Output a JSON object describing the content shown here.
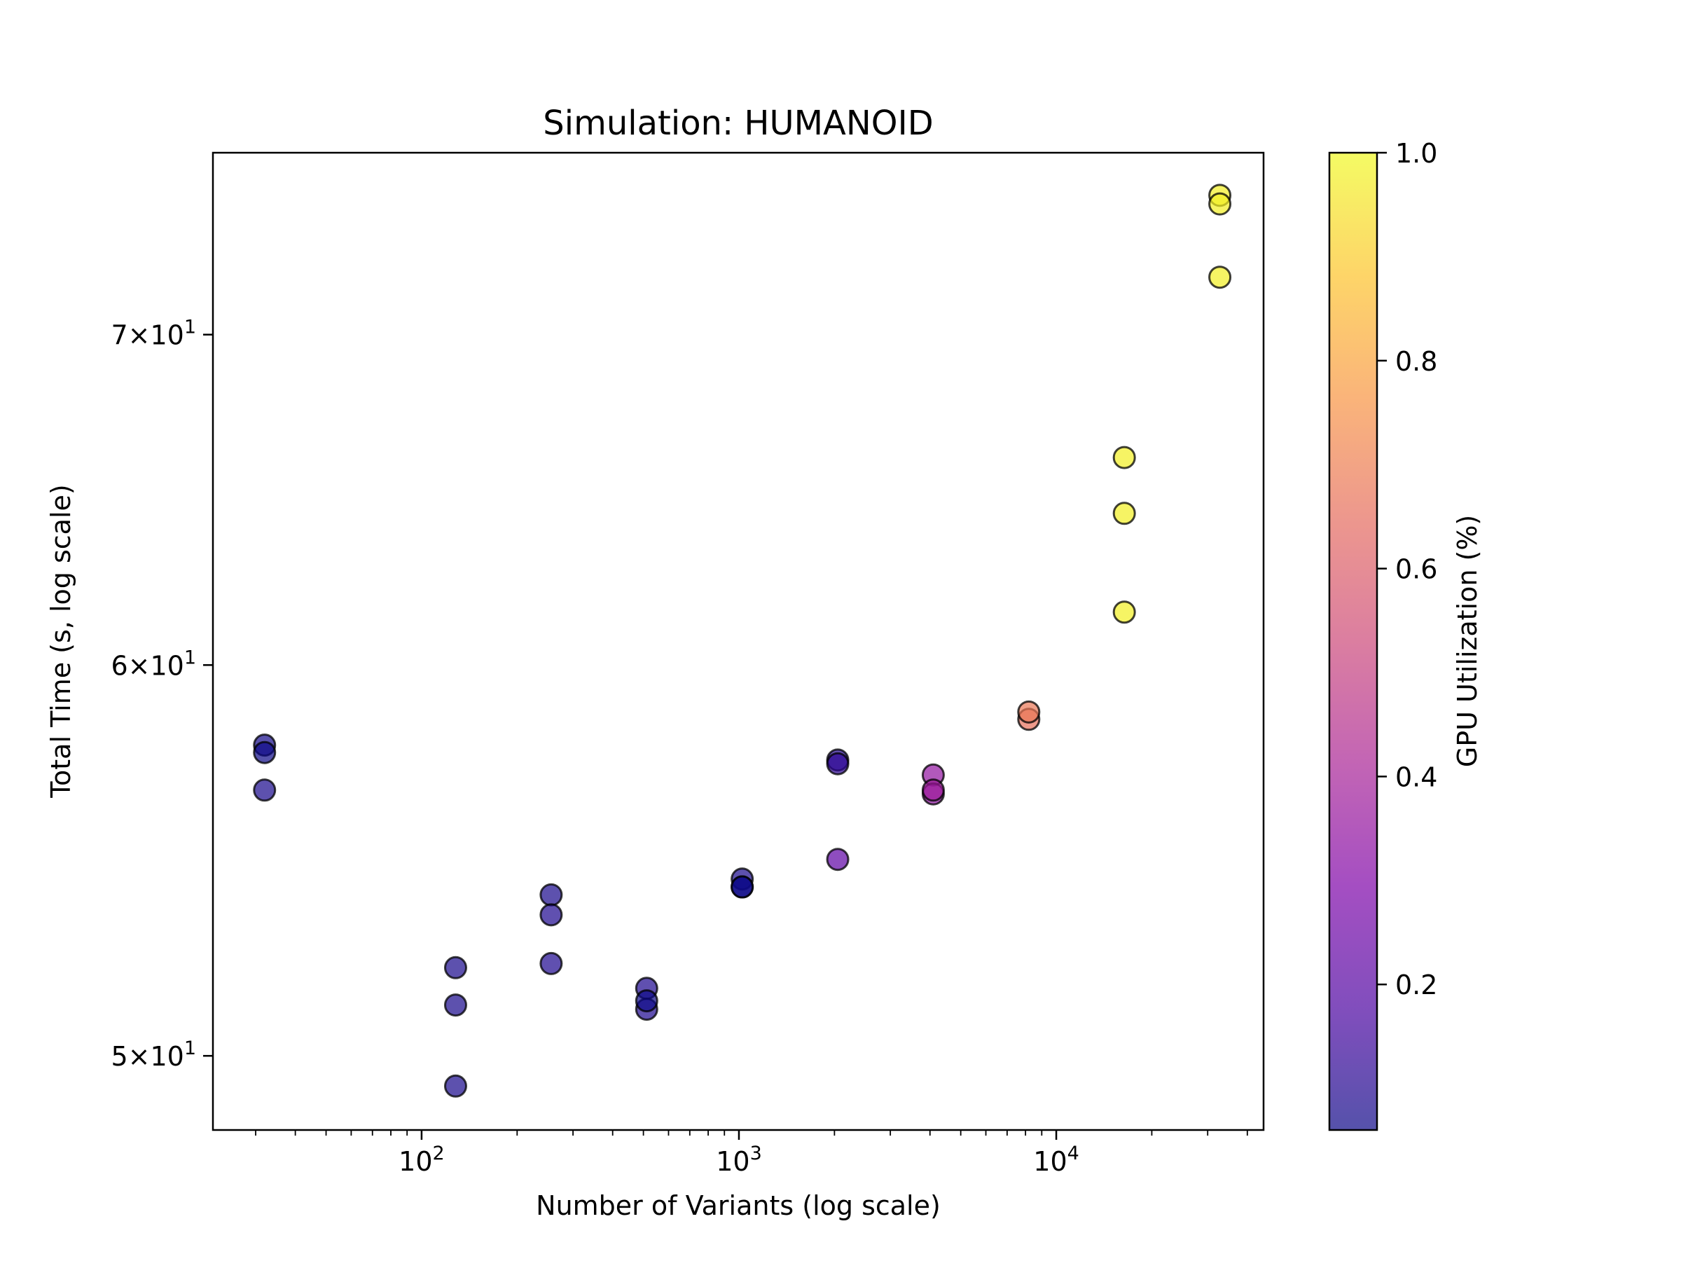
{
  "chart_data": {
    "type": "scatter",
    "title": "Simulation: HUMANOID",
    "xlabel": "Number of Variants (log scale)",
    "ylabel": "Total Time (s, log scale)",
    "x_scale": "log",
    "y_scale": "log",
    "xlim": [
      22,
      45000
    ],
    "ylim": [
      48.3,
      76.2
    ],
    "x_ticks": [
      {
        "value": 100,
        "base": "10",
        "exp": "2"
      },
      {
        "value": 1000,
        "base": "10",
        "exp": "3"
      },
      {
        "value": 10000,
        "base": "10",
        "exp": "4"
      }
    ],
    "y_ticks": [
      {
        "value": 50,
        "mant": "5",
        "base": "10",
        "exp": "1"
      },
      {
        "value": 60,
        "mant": "6",
        "base": "10",
        "exp": "1"
      },
      {
        "value": 70,
        "mant": "7",
        "base": "10",
        "exp": "1"
      }
    ],
    "grid": false,
    "colormap": "plasma",
    "marker_edge_color": "#000000",
    "marker_alpha": 0.7,
    "colorbar": {
      "label": "GPU Utilization (%)",
      "range": [
        0.06,
        1.0
      ],
      "ticks": [
        {
          "value": 0.2,
          "label": "0.2"
        },
        {
          "value": 0.4,
          "label": "0.4"
        },
        {
          "value": 0.6,
          "label": "0.6"
        },
        {
          "value": 0.8,
          "label": "0.8"
        },
        {
          "value": 1.0,
          "label": "1.0"
        }
      ]
    },
    "points": [
      {
        "x": 32,
        "y": 57.8,
        "gpu": 0.07
      },
      {
        "x": 32,
        "y": 57.6,
        "gpu": 0.06
      },
      {
        "x": 32,
        "y": 56.6,
        "gpu": 0.08
      },
      {
        "x": 128,
        "y": 52.1,
        "gpu": 0.08
      },
      {
        "x": 128,
        "y": 51.2,
        "gpu": 0.08
      },
      {
        "x": 128,
        "y": 49.3,
        "gpu": 0.08
      },
      {
        "x": 256,
        "y": 53.9,
        "gpu": 0.08
      },
      {
        "x": 256,
        "y": 53.4,
        "gpu": 0.09
      },
      {
        "x": 256,
        "y": 52.2,
        "gpu": 0.09
      },
      {
        "x": 512,
        "y": 51.6,
        "gpu": 0.09
      },
      {
        "x": 512,
        "y": 51.1,
        "gpu": 0.09
      },
      {
        "x": 512,
        "y": 51.3,
        "gpu": 0.05
      },
      {
        "x": 1024,
        "y": 54.3,
        "gpu": 0.08
      },
      {
        "x": 1024,
        "y": 54.1,
        "gpu": 0.04
      },
      {
        "x": 1024,
        "y": 54.1,
        "gpu": 0.05
      },
      {
        "x": 2048,
        "y": 57.4,
        "gpu": 0.1
      },
      {
        "x": 2048,
        "y": 57.3,
        "gpu": 0.12
      },
      {
        "x": 2048,
        "y": 54.8,
        "gpu": 0.22
      },
      {
        "x": 4096,
        "y": 57.0,
        "gpu": 0.35
      },
      {
        "x": 4096,
        "y": 56.5,
        "gpu": 0.34
      },
      {
        "x": 4096,
        "y": 56.6,
        "gpu": 0.38
      },
      {
        "x": 8192,
        "y": 58.5,
        "gpu": 0.66
      },
      {
        "x": 8192,
        "y": 58.7,
        "gpu": 0.68
      },
      {
        "x": 16384,
        "y": 66.1,
        "gpu": 0.98
      },
      {
        "x": 16384,
        "y": 64.4,
        "gpu": 0.98
      },
      {
        "x": 16384,
        "y": 61.5,
        "gpu": 0.98
      },
      {
        "x": 32768,
        "y": 74.7,
        "gpu": 0.98
      },
      {
        "x": 32768,
        "y": 74.4,
        "gpu": 0.98
      },
      {
        "x": 32768,
        "y": 71.9,
        "gpu": 0.98
      }
    ]
  }
}
